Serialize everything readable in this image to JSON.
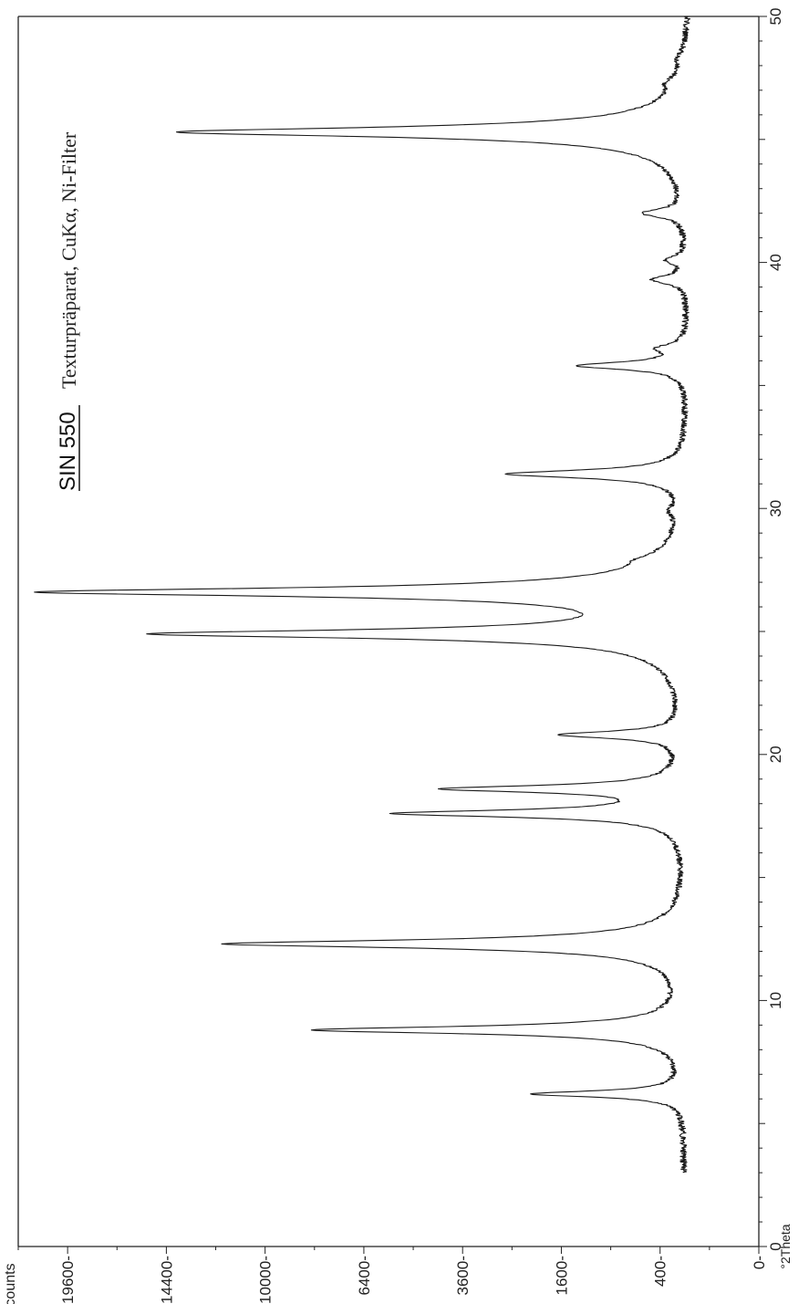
{
  "chart_data": {
    "type": "line",
    "title": "SIN 550",
    "subtitle": "Texturpräparat, CuKα, Ni-Filter",
    "xlabel": "°2Theta",
    "ylabel": "counts",
    "orientation": "rotated-90-clockwise",
    "xlim": [
      0,
      50
    ],
    "x_ticks": [
      0,
      10,
      20,
      30,
      40,
      50
    ],
    "x_tick_labels": [
      "0",
      "10",
      "20",
      "30",
      "40",
      "50"
    ],
    "y_scale": "sqrt",
    "ylim": [
      0,
      22500
    ],
    "y_ticks": [
      0,
      400,
      1600,
      3600,
      6400,
      10000,
      14400,
      19600
    ],
    "y_tick_labels": [
      "0",
      "400",
      "1600",
      "3600",
      "6400",
      "10000",
      "14400",
      "19600"
    ],
    "grid": false,
    "baseline_counts": 190,
    "peaks": [
      {
        "x": 6.2,
        "y": 1900,
        "w": 0.12
      },
      {
        "x": 8.8,
        "y": 8000,
        "w": 0.13
      },
      {
        "x": 12.3,
        "y": 11600,
        "w": 0.14
      },
      {
        "x": 17.6,
        "y": 5300,
        "w": 0.13
      },
      {
        "x": 18.6,
        "y": 3900,
        "w": 0.13
      },
      {
        "x": 20.8,
        "y": 1400,
        "w": 0.14
      },
      {
        "x": 24.9,
        "y": 15000,
        "w": 0.15
      },
      {
        "x": 26.6,
        "y": 21200,
        "w": 0.15
      },
      {
        "x": 27.9,
        "y": 130,
        "w": 0.25
      },
      {
        "x": 29.9,
        "y": 60,
        "w": 0.25
      },
      {
        "x": 31.4,
        "y": 2400,
        "w": 0.15
      },
      {
        "x": 35.8,
        "y": 1150,
        "w": 0.15
      },
      {
        "x": 36.5,
        "y": 200,
        "w": 0.18
      },
      {
        "x": 39.3,
        "y": 260,
        "w": 0.18
      },
      {
        "x": 40.1,
        "y": 130,
        "w": 0.18
      },
      {
        "x": 42.0,
        "y": 330,
        "w": 0.18
      },
      {
        "x": 45.3,
        "y": 13700,
        "w": 0.17
      },
      {
        "x": 47.3,
        "y": 70,
        "w": 0.25
      },
      {
        "x": 48.3,
        "y": 40,
        "w": 0.25
      }
    ]
  }
}
